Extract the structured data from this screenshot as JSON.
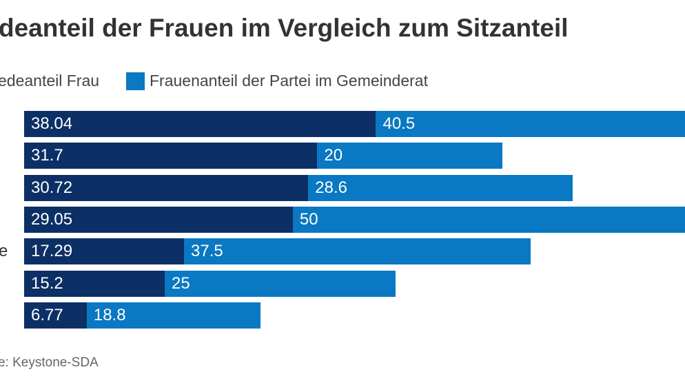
{
  "chart_data": {
    "type": "bar",
    "orientation": "horizontal",
    "stacked": true,
    "title": "deanteil der Frauen im Vergleich zum Sitzanteil",
    "categories": [
      "",
      "",
      "",
      "",
      "e",
      "",
      ""
    ],
    "series": [
      {
        "name": "edeanteil Frau",
        "color": "#0c2f66",
        "values": [
          38.04,
          31.7,
          30.72,
          29.05,
          17.29,
          15.2,
          6.77
        ]
      },
      {
        "name": "Frauenanteil der Partei im Gemeinderat",
        "color": "#0a78c2",
        "values": [
          40.5,
          20,
          28.6,
          50,
          37.5,
          25,
          18.8
        ]
      }
    ],
    "value_labels": [
      [
        "38.04",
        "31.7",
        "30.72",
        "29.05",
        "17.29",
        "15.2",
        "6.77"
      ],
      [
        "40.5",
        "20",
        "28.6",
        "50",
        "37.5",
        "25",
        "18.8"
      ]
    ],
    "grid": false,
    "legend_position": "top-left",
    "source": "e: Keystone-SDA"
  }
}
